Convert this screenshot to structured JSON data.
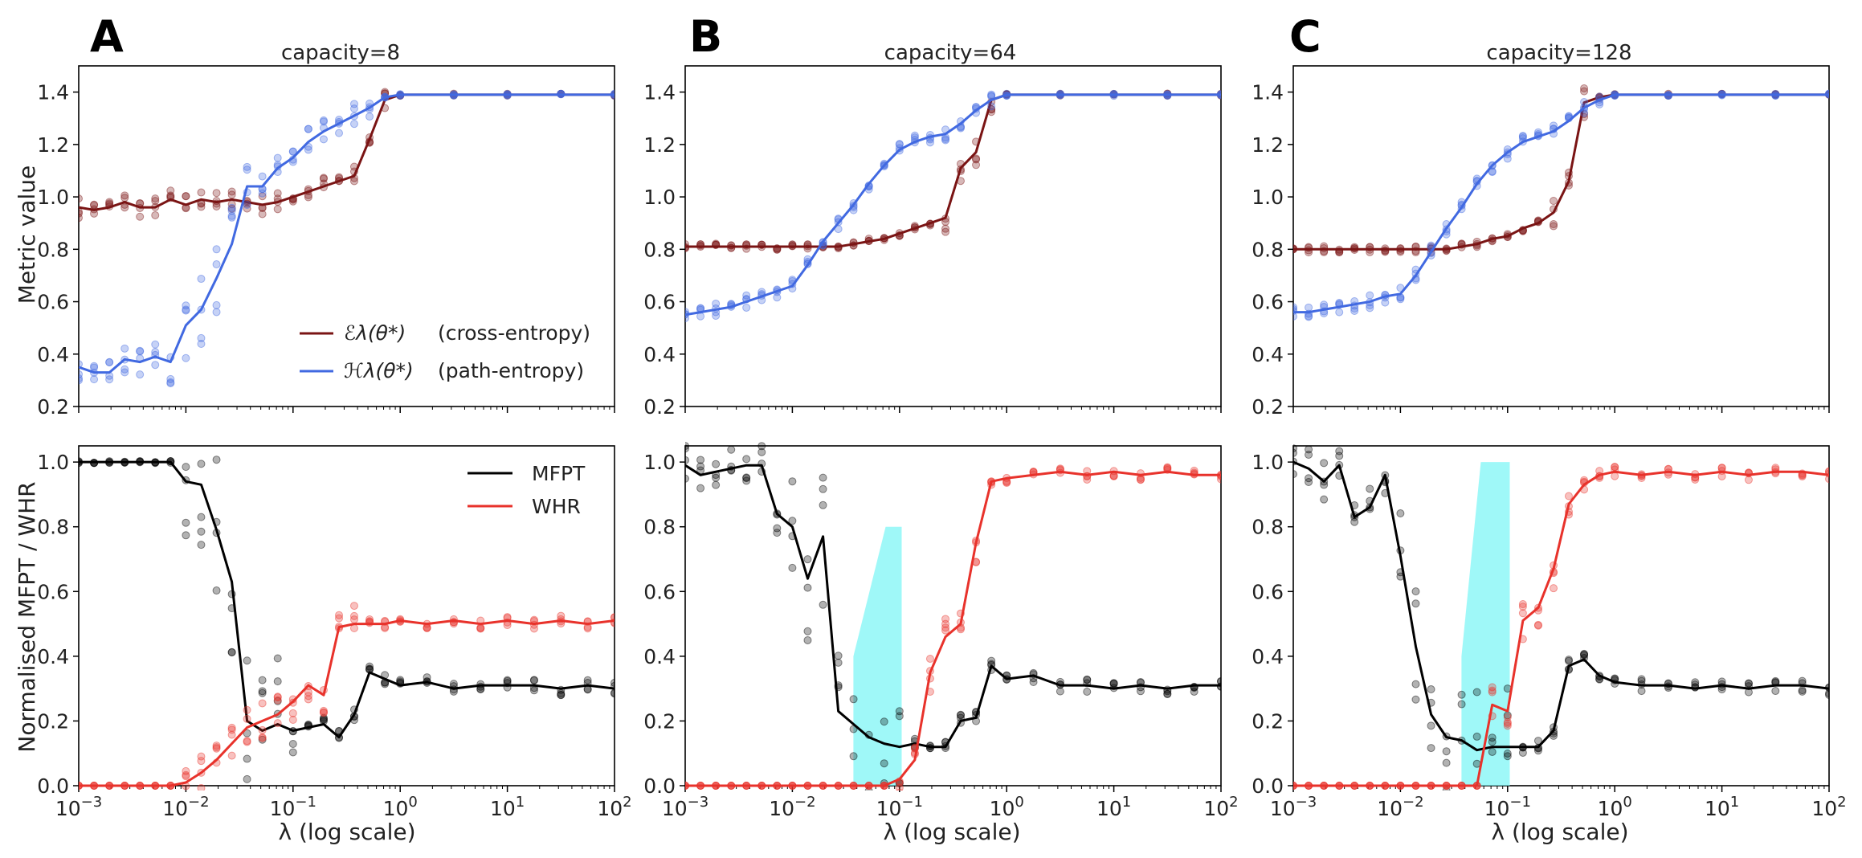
{
  "figure": {
    "y_label_top": "Metric value",
    "y_label_bottom": "Normalised MFPT / WHR",
    "x_label": "λ (log scale)",
    "legend_top": {
      "cross_entropy": "(cross-entropy)",
      "path_entropy": "(path-entropy)",
      "cross_entropy_symbol": "ℰλ(θ*)",
      "path_entropy_symbol": "ℋλ(θ*)"
    },
    "legend_bottom": {
      "mfpt": "MFPT",
      "whr": "WHR"
    },
    "colors": {
      "cross_entropy": "#7a1414",
      "path_entropy": "#4169e1",
      "mfpt": "#000000",
      "whr": "#e8322b",
      "band": "#7ff5f5"
    }
  },
  "chart_data": [
    {
      "panel": "A",
      "title": "capacity=8",
      "type": "line",
      "x_scale": "log",
      "xlim": [
        0.001,
        100
      ],
      "x_ticks": [
        "10^-3",
        "10^-2",
        "10^-1",
        "10^0",
        "10^1",
        "10^2"
      ],
      "top": {
        "ylim": [
          0.2,
          1.5
        ],
        "y_ticks": [
          "0.2",
          "0.4",
          "0.6",
          "0.8",
          "1.0",
          "1.2",
          "1.4"
        ],
        "x_log": [
          -3.0,
          -2.857,
          -2.714,
          -2.571,
          -2.429,
          -2.286,
          -2.143,
          -2.0,
          -1.857,
          -1.714,
          -1.571,
          -1.429,
          -1.286,
          -1.143,
          -1.0,
          -0.857,
          -0.714,
          -0.571,
          -0.429,
          -0.286,
          -0.143,
          0.0,
          0.5,
          1.0,
          1.5,
          2.0
        ],
        "series": [
          {
            "name": "cross-entropy",
            "values": [
              0.96,
              0.95,
              0.96,
              0.98,
              0.96,
              0.96,
              0.99,
              0.97,
              0.99,
              0.98,
              0.99,
              0.98,
              0.97,
              0.98,
              1.0,
              1.02,
              1.04,
              1.06,
              1.08,
              1.22,
              1.37,
              1.39,
              1.39,
              1.39,
              1.39,
              1.39
            ]
          },
          {
            "name": "path-entropy",
            "values": [
              0.35,
              0.33,
              0.33,
              0.38,
              0.37,
              0.39,
              0.37,
              0.51,
              0.57,
              0.69,
              0.82,
              1.04,
              1.04,
              1.11,
              1.15,
              1.21,
              1.25,
              1.28,
              1.31,
              1.34,
              1.38,
              1.39,
              1.39,
              1.39,
              1.39,
              1.39
            ]
          }
        ]
      },
      "bottom": {
        "ylim": [
          0.0,
          1.05
        ],
        "y_ticks": [
          "0.0",
          "0.2",
          "0.4",
          "0.6",
          "0.8",
          "1.0"
        ],
        "x_log": [
          -3.0,
          -2.857,
          -2.714,
          -2.571,
          -2.429,
          -2.286,
          -2.143,
          -2.0,
          -1.857,
          -1.714,
          -1.571,
          -1.429,
          -1.286,
          -1.143,
          -1.0,
          -0.857,
          -0.714,
          -0.571,
          -0.429,
          -0.286,
          -0.143,
          0.0,
          0.25,
          0.5,
          0.75,
          1.0,
          1.25,
          1.5,
          1.75,
          2.0
        ],
        "series": [
          {
            "name": "MFPT",
            "values": [
              1.0,
              1.0,
              1.0,
              1.0,
              1.0,
              1.0,
              1.0,
              0.94,
              0.93,
              0.79,
              0.63,
              0.2,
              0.17,
              0.19,
              0.17,
              0.18,
              0.19,
              0.15,
              0.22,
              0.35,
              0.33,
              0.31,
              0.32,
              0.3,
              0.31,
              0.31,
              0.31,
              0.3,
              0.31,
              0.3
            ]
          },
          {
            "name": "WHR",
            "values": [
              0.0,
              0.0,
              0.0,
              0.0,
              0.0,
              0.0,
              0.0,
              0.01,
              0.04,
              0.08,
              0.13,
              0.18,
              0.2,
              0.22,
              0.26,
              0.31,
              0.28,
              0.49,
              0.5,
              0.5,
              0.5,
              0.51,
              0.5,
              0.51,
              0.5,
              0.51,
              0.5,
              0.51,
              0.5,
              0.51
            ]
          }
        ],
        "band": null
      }
    },
    {
      "panel": "B",
      "title": "capacity=64",
      "type": "line",
      "x_scale": "log",
      "xlim": [
        0.001,
        100
      ],
      "x_ticks": [
        "10^-3",
        "10^-2",
        "10^-1",
        "10^0",
        "10^1",
        "10^2"
      ],
      "top": {
        "ylim": [
          0.2,
          1.5
        ],
        "y_ticks": [
          "0.2",
          "0.4",
          "0.6",
          "0.8",
          "1.0",
          "1.2",
          "1.4"
        ],
        "x_log": [
          -3.0,
          -2.857,
          -2.714,
          -2.571,
          -2.429,
          -2.286,
          -2.143,
          -2.0,
          -1.857,
          -1.714,
          -1.571,
          -1.429,
          -1.286,
          -1.143,
          -1.0,
          -0.857,
          -0.714,
          -0.571,
          -0.429,
          -0.286,
          -0.143,
          0.0,
          0.5,
          1.0,
          1.5,
          2.0
        ],
        "series": [
          {
            "name": "cross-entropy",
            "values": [
              0.81,
              0.81,
              0.81,
              0.81,
              0.81,
              0.81,
              0.81,
              0.81,
              0.81,
              0.81,
              0.81,
              0.82,
              0.83,
              0.84,
              0.86,
              0.88,
              0.9,
              0.92,
              1.11,
              1.17,
              1.37,
              1.39,
              1.39,
              1.39,
              1.39,
              1.39
            ]
          },
          {
            "name": "path-entropy",
            "values": [
              0.55,
              0.56,
              0.57,
              0.58,
              0.6,
              0.62,
              0.64,
              0.66,
              0.74,
              0.83,
              0.9,
              0.97,
              1.05,
              1.12,
              1.18,
              1.21,
              1.23,
              1.24,
              1.28,
              1.33,
              1.37,
              1.39,
              1.39,
              1.39,
              1.39,
              1.39
            ]
          }
        ]
      },
      "bottom": {
        "ylim": [
          0.0,
          1.05
        ],
        "y_ticks": [
          "0.0",
          "0.2",
          "0.4",
          "0.6",
          "0.8",
          "1.0"
        ],
        "x_log": [
          -3.0,
          -2.857,
          -2.714,
          -2.571,
          -2.429,
          -2.286,
          -2.143,
          -2.0,
          -1.857,
          -1.714,
          -1.571,
          -1.429,
          -1.286,
          -1.143,
          -1.0,
          -0.857,
          -0.714,
          -0.571,
          -0.429,
          -0.286,
          -0.143,
          0.0,
          0.25,
          0.5,
          0.75,
          1.0,
          1.25,
          1.5,
          1.75,
          2.0
        ],
        "series": [
          {
            "name": "MFPT",
            "values": [
              0.99,
              0.96,
              0.97,
              0.98,
              0.99,
              0.99,
              0.84,
              0.8,
              0.64,
              0.77,
              0.23,
              0.19,
              0.15,
              0.13,
              0.12,
              0.13,
              0.12,
              0.12,
              0.2,
              0.21,
              0.37,
              0.33,
              0.34,
              0.31,
              0.31,
              0.3,
              0.31,
              0.3,
              0.31,
              0.31
            ]
          },
          {
            "name": "WHR",
            "values": [
              0.0,
              0.0,
              0.0,
              0.0,
              0.0,
              0.0,
              0.0,
              0.0,
              0.0,
              0.0,
              0.0,
              0.0,
              0.0,
              0.0,
              0.02,
              0.08,
              0.35,
              0.46,
              0.5,
              0.75,
              0.94,
              0.95,
              0.96,
              0.97,
              0.96,
              0.97,
              0.96,
              0.97,
              0.96,
              0.96
            ]
          }
        ],
        "band": {
          "x_log_start": -1.43,
          "x_log_end": -0.98,
          "upper_start": 0.4,
          "upper_end": 0.8,
          "upper_flat_from": -1.13
        }
      }
    },
    {
      "panel": "C",
      "title": "capacity=128",
      "type": "line",
      "x_scale": "log",
      "xlim": [
        0.001,
        100
      ],
      "x_ticks": [
        "10^-3",
        "10^-2",
        "10^-1",
        "10^0",
        "10^1",
        "10^2"
      ],
      "top": {
        "ylim": [
          0.2,
          1.5
        ],
        "y_ticks": [
          "0.2",
          "0.4",
          "0.6",
          "0.8",
          "1.0",
          "1.2",
          "1.4"
        ],
        "x_log": [
          -3.0,
          -2.857,
          -2.714,
          -2.571,
          -2.429,
          -2.286,
          -2.143,
          -2.0,
          -1.857,
          -1.714,
          -1.571,
          -1.429,
          -1.286,
          -1.143,
          -1.0,
          -0.857,
          -0.714,
          -0.571,
          -0.429,
          -0.286,
          -0.143,
          0.0,
          0.5,
          1.0,
          1.5,
          2.0
        ],
        "series": [
          {
            "name": "cross-entropy",
            "values": [
              0.8,
              0.8,
              0.8,
              0.8,
              0.8,
              0.8,
              0.8,
              0.8,
              0.8,
              0.8,
              0.8,
              0.81,
              0.82,
              0.84,
              0.85,
              0.88,
              0.9,
              0.94,
              1.06,
              1.36,
              1.38,
              1.39,
              1.39,
              1.39,
              1.39,
              1.39
            ]
          },
          {
            "name": "path-entropy",
            "values": [
              0.56,
              0.56,
              0.57,
              0.58,
              0.59,
              0.6,
              0.62,
              0.63,
              0.7,
              0.79,
              0.88,
              0.96,
              1.05,
              1.12,
              1.17,
              1.21,
              1.23,
              1.25,
              1.29,
              1.34,
              1.37,
              1.39,
              1.39,
              1.39,
              1.39,
              1.39
            ]
          }
        ]
      },
      "bottom": {
        "ylim": [
          0.0,
          1.05
        ],
        "y_ticks": [
          "0.0",
          "0.2",
          "0.4",
          "0.6",
          "0.8",
          "1.0"
        ],
        "x_log": [
          -3.0,
          -2.857,
          -2.714,
          -2.571,
          -2.429,
          -2.286,
          -2.143,
          -2.0,
          -1.857,
          -1.714,
          -1.571,
          -1.429,
          -1.286,
          -1.143,
          -1.0,
          -0.857,
          -0.714,
          -0.571,
          -0.429,
          -0.286,
          -0.143,
          0.0,
          0.25,
          0.5,
          0.75,
          1.0,
          1.25,
          1.5,
          1.75,
          2.0
        ],
        "series": [
          {
            "name": "MFPT",
            "values": [
              1.0,
              0.98,
              0.94,
              0.99,
              0.83,
              0.86,
              0.96,
              0.71,
              0.43,
              0.22,
              0.15,
              0.14,
              0.11,
              0.12,
              0.12,
              0.12,
              0.12,
              0.17,
              0.37,
              0.39,
              0.34,
              0.32,
              0.31,
              0.31,
              0.3,
              0.31,
              0.3,
              0.31,
              0.31,
              0.3
            ]
          },
          {
            "name": "WHR",
            "values": [
              0.0,
              0.0,
              0.0,
              0.0,
              0.0,
              0.0,
              0.0,
              0.0,
              0.0,
              0.0,
              0.0,
              0.0,
              0.0,
              0.25,
              0.23,
              0.51,
              0.55,
              0.67,
              0.87,
              0.93,
              0.96,
              0.97,
              0.96,
              0.97,
              0.96,
              0.97,
              0.96,
              0.97,
              0.97,
              0.96
            ]
          }
        ],
        "band": {
          "x_log_start": -1.43,
          "x_log_end": -0.98,
          "upper_start": 0.4,
          "upper_end": 1.0,
          "upper_flat_from": -1.25
        }
      }
    }
  ]
}
